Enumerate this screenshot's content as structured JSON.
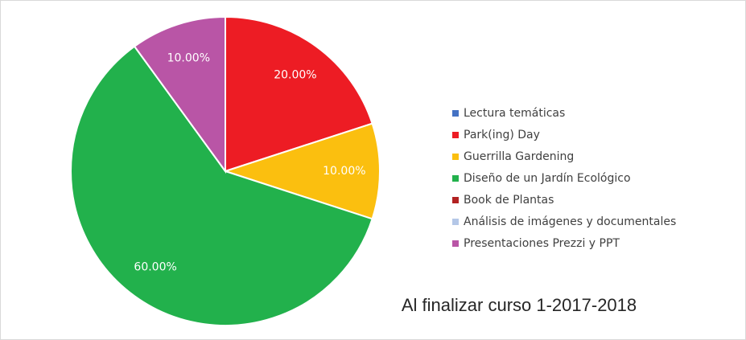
{
  "chart_data": {
    "type": "pie",
    "title": "Al finalizar curso 1-2017-2018",
    "categories": [
      "Lectura temáticas",
      "Park(ing) Day",
      "Guerrilla Gardening",
      "Diseño de un Jardín Ecológico",
      "Book de Plantas",
      "Análisis de imágenes y documentales",
      "Presentaciones Prezzi y PPT"
    ],
    "values": [
      0,
      20,
      10,
      60,
      0,
      0,
      10
    ],
    "value_labels": [
      null,
      "20.00%",
      "10.00%",
      "60.00%",
      null,
      null,
      "10.00%"
    ],
    "colors": [
      "#4472c4",
      "#ed1c24",
      "#fbbf0f",
      "#22b14c",
      "#b22222",
      "#b4c7e7",
      "#b955a6"
    ],
    "legend": "right"
  }
}
